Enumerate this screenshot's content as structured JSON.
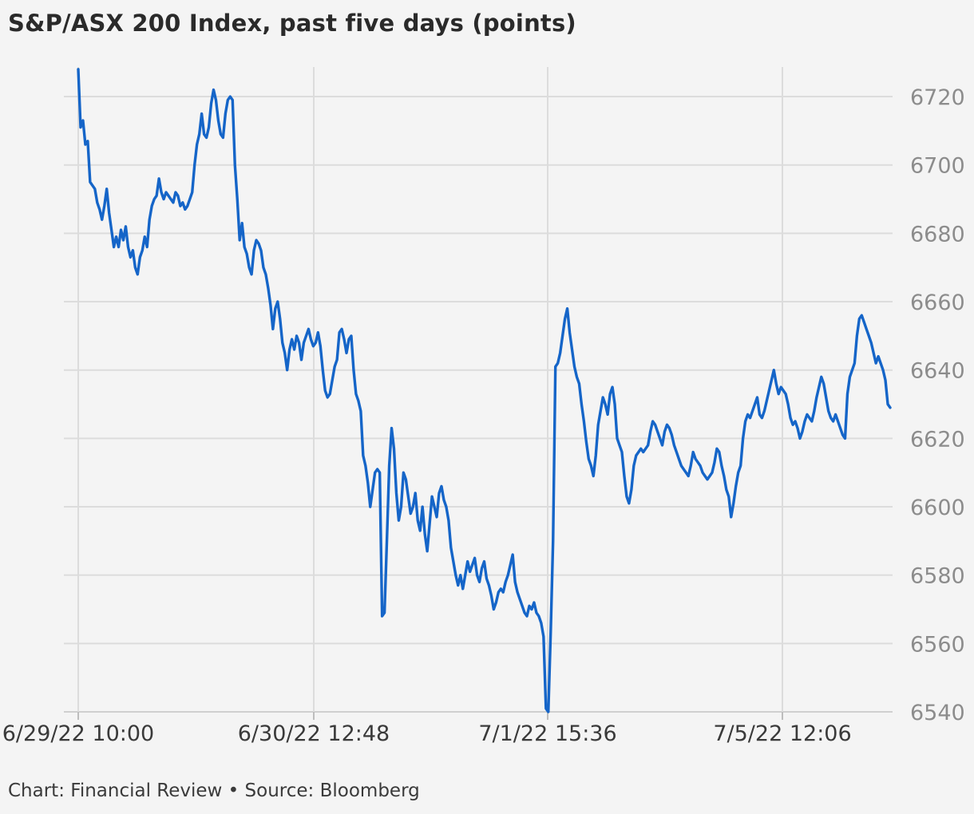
{
  "title": "S&P/ASX 200 Index, past five days (points)",
  "footer": "Chart: Financial Review • Source: Bloomberg",
  "colors": {
    "line": "#1565c8",
    "grid": "#dcdcdc",
    "axis_text": "#8c8c8c",
    "background": "#f4f4f4"
  },
  "chart_data": {
    "type": "line",
    "title": "S&P/ASX 200 Index, past five days (points)",
    "xlabel": "",
    "ylabel": "",
    "ylim": [
      6540,
      6730
    ],
    "y_ticks": [
      6540,
      6560,
      6580,
      6600,
      6620,
      6640,
      6660,
      6680,
      6700,
      6720
    ],
    "x_tick_labels": [
      "6/29/22 10:00",
      "6/30/22 12:48",
      "7/1/22 15:36",
      "7/5/22 12:06"
    ],
    "y_axis_side": "right",
    "grid": true,
    "legend": "none",
    "series": [
      {
        "values": [
          6728,
          6711,
          6713,
          6706,
          6707,
          6695,
          6694,
          6693,
          6689,
          6687,
          6684,
          6688,
          6693,
          6686,
          6681,
          6676,
          6679,
          6676,
          6681,
          6678,
          6682,
          6676,
          6673,
          6675,
          6670,
          6668,
          6673,
          6675,
          6679,
          6676,
          6684,
          6688,
          6690,
          6691,
          6696,
          6692,
          6690,
          6692,
          6691,
          6690,
          6689,
          6692,
          6691,
          6688,
          6689,
          6687,
          6688,
          6690,
          6692,
          6700,
          6706,
          6709,
          6715,
          6709,
          6708,
          6711,
          6718,
          6722,
          6719,
          6713,
          6709,
          6708,
          6715,
          6719,
          6720,
          6719,
          6700,
          6690,
          6678,
          6683,
          6676,
          6674,
          6670,
          6668,
          6675,
          6678,
          6677,
          6675,
          6670,
          6668,
          6664,
          6659,
          6652,
          6658,
          6660,
          6655,
          6648,
          6645,
          6640,
          6646,
          6649,
          6646,
          6650,
          6648,
          6643,
          6648,
          6650,
          6652,
          6649,
          6647,
          6648,
          6651,
          6647,
          6640,
          6634,
          6632,
          6633,
          6637,
          6641,
          6643,
          6651,
          6652,
          6649,
          6645,
          6649,
          6650,
          6640,
          6633,
          6631,
          6628,
          6615,
          6612,
          6607,
          6600,
          6605,
          6610,
          6611,
          6610,
          6568,
          6569,
          6590,
          6612,
          6623,
          6617,
          6604,
          6596,
          6600,
          6610,
          6608,
          6603,
          6598,
          6600,
          6604,
          6596,
          6593,
          6600,
          6592,
          6587,
          6595,
          6603,
          6600,
          6597,
          6604,
          6606,
          6602,
          6600,
          6596,
          6588,
          6584,
          6580,
          6577,
          6580,
          6576,
          6580,
          6584,
          6581,
          6583,
          6585,
          6580,
          6578,
          6582,
          6584,
          6579,
          6577,
          6574,
          6570,
          6572,
          6575,
          6576,
          6575,
          6578,
          6580,
          6583,
          6586,
          6578,
          6575,
          6573,
          6571,
          6569,
          6568,
          6571,
          6570,
          6572,
          6569,
          6568,
          6566,
          6562,
          6541,
          6540,
          6563,
          6590,
          6641,
          6642,
          6645,
          6650,
          6655,
          6658,
          6651,
          6646,
          6641,
          6638,
          6636,
          6630,
          6625,
          6619,
          6614,
          6612,
          6609,
          6615,
          6624,
          6628,
          6632,
          6630,
          6627,
          6633,
          6635,
          6630,
          6620,
          6618,
          6616,
          6609,
          6603,
          6601,
          6605,
          6612,
          6615,
          6616,
          6617,
          6616,
          6617,
          6618,
          6622,
          6625,
          6624,
          6622,
          6620,
          6618,
          6622,
          6624,
          6623,
          6621,
          6618,
          6616,
          6614,
          6612,
          6611,
          6610,
          6609,
          6612,
          6616,
          6614,
          6613,
          6612,
          6610,
          6609,
          6608,
          6609,
          6610,
          6613,
          6617,
          6616,
          6612,
          6609,
          6605,
          6603,
          6597,
          6601,
          6606,
          6610,
          6612,
          6620,
          6625,
          6627,
          6626,
          6628,
          6630,
          6632,
          6627,
          6626,
          6628,
          6631,
          6634,
          6637,
          6640,
          6636,
          6633,
          6635,
          6634,
          6633,
          6630,
          6626,
          6624,
          6625,
          6623,
          6620,
          6622,
          6625,
          6627,
          6626,
          6625,
          6628,
          6632,
          6635,
          6638,
          6636,
          6632,
          6628,
          6626,
          6625,
          6627,
          6625,
          6623,
          6621,
          6620,
          6633,
          6638,
          6640,
          6642,
          6650,
          6655,
          6656,
          6654,
          6652,
          6650,
          6648,
          6645,
          6642,
          6644,
          6642,
          6640,
          6637,
          6630,
          6629
        ]
      }
    ]
  }
}
